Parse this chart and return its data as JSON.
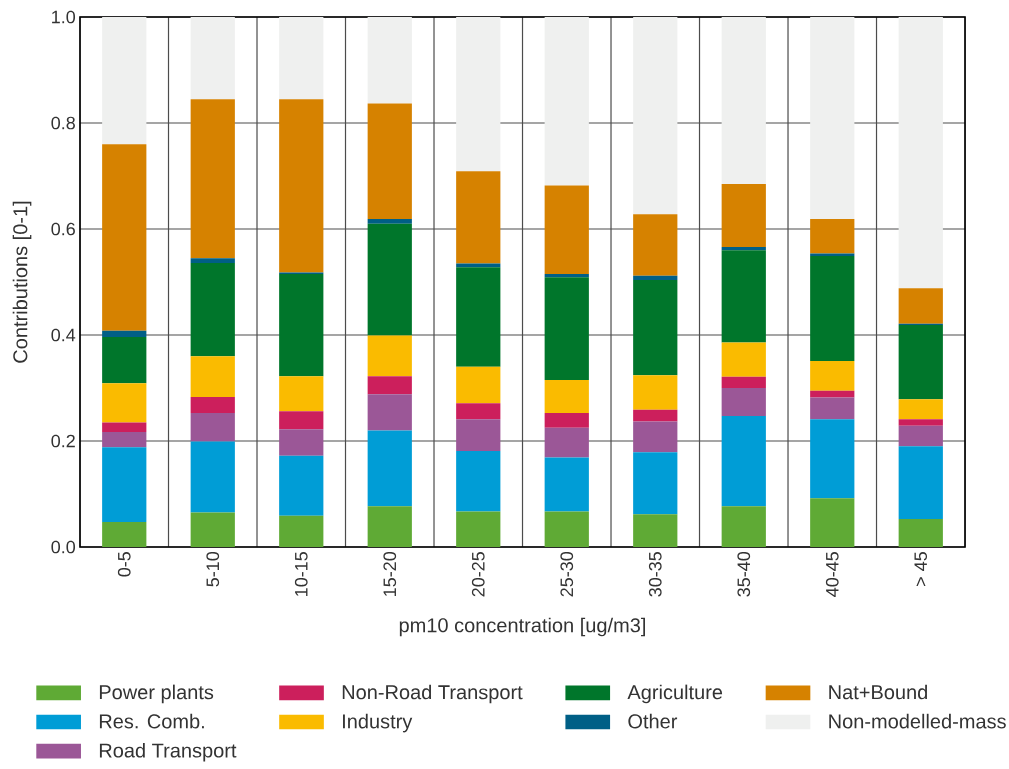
{
  "chart_data": {
    "type": "bar",
    "stacked": true,
    "xlabel": "pm10 concentration [ug/m3]",
    "ylabel": "Contributions [0-1]",
    "categories": [
      "0-5",
      "5-10",
      "10-15",
      "15-20",
      "20-25",
      "25-30",
      "30-35",
      "35-40",
      "40-45",
      "> 45"
    ],
    "series": [
      {
        "name": "Power plants",
        "color": "#5faa35",
        "values": [
          0.047,
          0.065,
          0.059,
          0.077,
          0.067,
          0.067,
          0.062,
          0.077,
          0.092,
          0.053
        ]
      },
      {
        "name": "Res. Comb.",
        "color": "#009dd6",
        "values": [
          0.141,
          0.134,
          0.113,
          0.143,
          0.114,
          0.102,
          0.117,
          0.17,
          0.149,
          0.137
        ]
      },
      {
        "name": "Road Transport",
        "color": "#9b5797",
        "values": [
          0.029,
          0.054,
          0.05,
          0.068,
          0.06,
          0.056,
          0.058,
          0.053,
          0.041,
          0.039
        ]
      },
      {
        "name": "Non-Road Transport",
        "color": "#cc1f5c",
        "values": [
          0.018,
          0.03,
          0.034,
          0.034,
          0.03,
          0.028,
          0.022,
          0.021,
          0.013,
          0.012
        ]
      },
      {
        "name": "Industry",
        "color": "#fabb00",
        "values": [
          0.074,
          0.077,
          0.066,
          0.077,
          0.069,
          0.062,
          0.065,
          0.065,
          0.056,
          0.038
        ]
      },
      {
        "name": "Agriculture",
        "color": "#00762b",
        "values": [
          0.087,
          0.176,
          0.193,
          0.211,
          0.188,
          0.194,
          0.18,
          0.174,
          0.198,
          0.14
        ]
      },
      {
        "name": "Other",
        "color": "#005f86",
        "values": [
          0.012,
          0.009,
          0.003,
          0.009,
          0.007,
          0.006,
          0.008,
          0.006,
          0.005,
          0.002
        ]
      },
      {
        "name": "Nat+Bound",
        "color": "#d68200",
        "values": [
          0.352,
          0.3,
          0.327,
          0.218,
          0.174,
          0.167,
          0.116,
          0.119,
          0.065,
          0.067
        ]
      },
      {
        "name": "Non-modelled-mass",
        "color": "#eff0ef",
        "values": [
          0.24,
          0.155,
          0.155,
          0.163,
          0.291,
          0.318,
          0.372,
          0.315,
          0.381,
          0.512
        ]
      }
    ],
    "ylim": [
      0,
      1
    ],
    "yticks": [
      {
        "value": 0,
        "label": "0.0"
      },
      {
        "value": 0.2,
        "label": "0.2"
      },
      {
        "value": 0.4,
        "label": "0.4"
      },
      {
        "value": 0.6,
        "label": "0.6"
      },
      {
        "value": 0.8,
        "label": "0.8"
      },
      {
        "value": 1,
        "label": "1.0"
      }
    ],
    "grid": true,
    "legend": "bottom"
  }
}
